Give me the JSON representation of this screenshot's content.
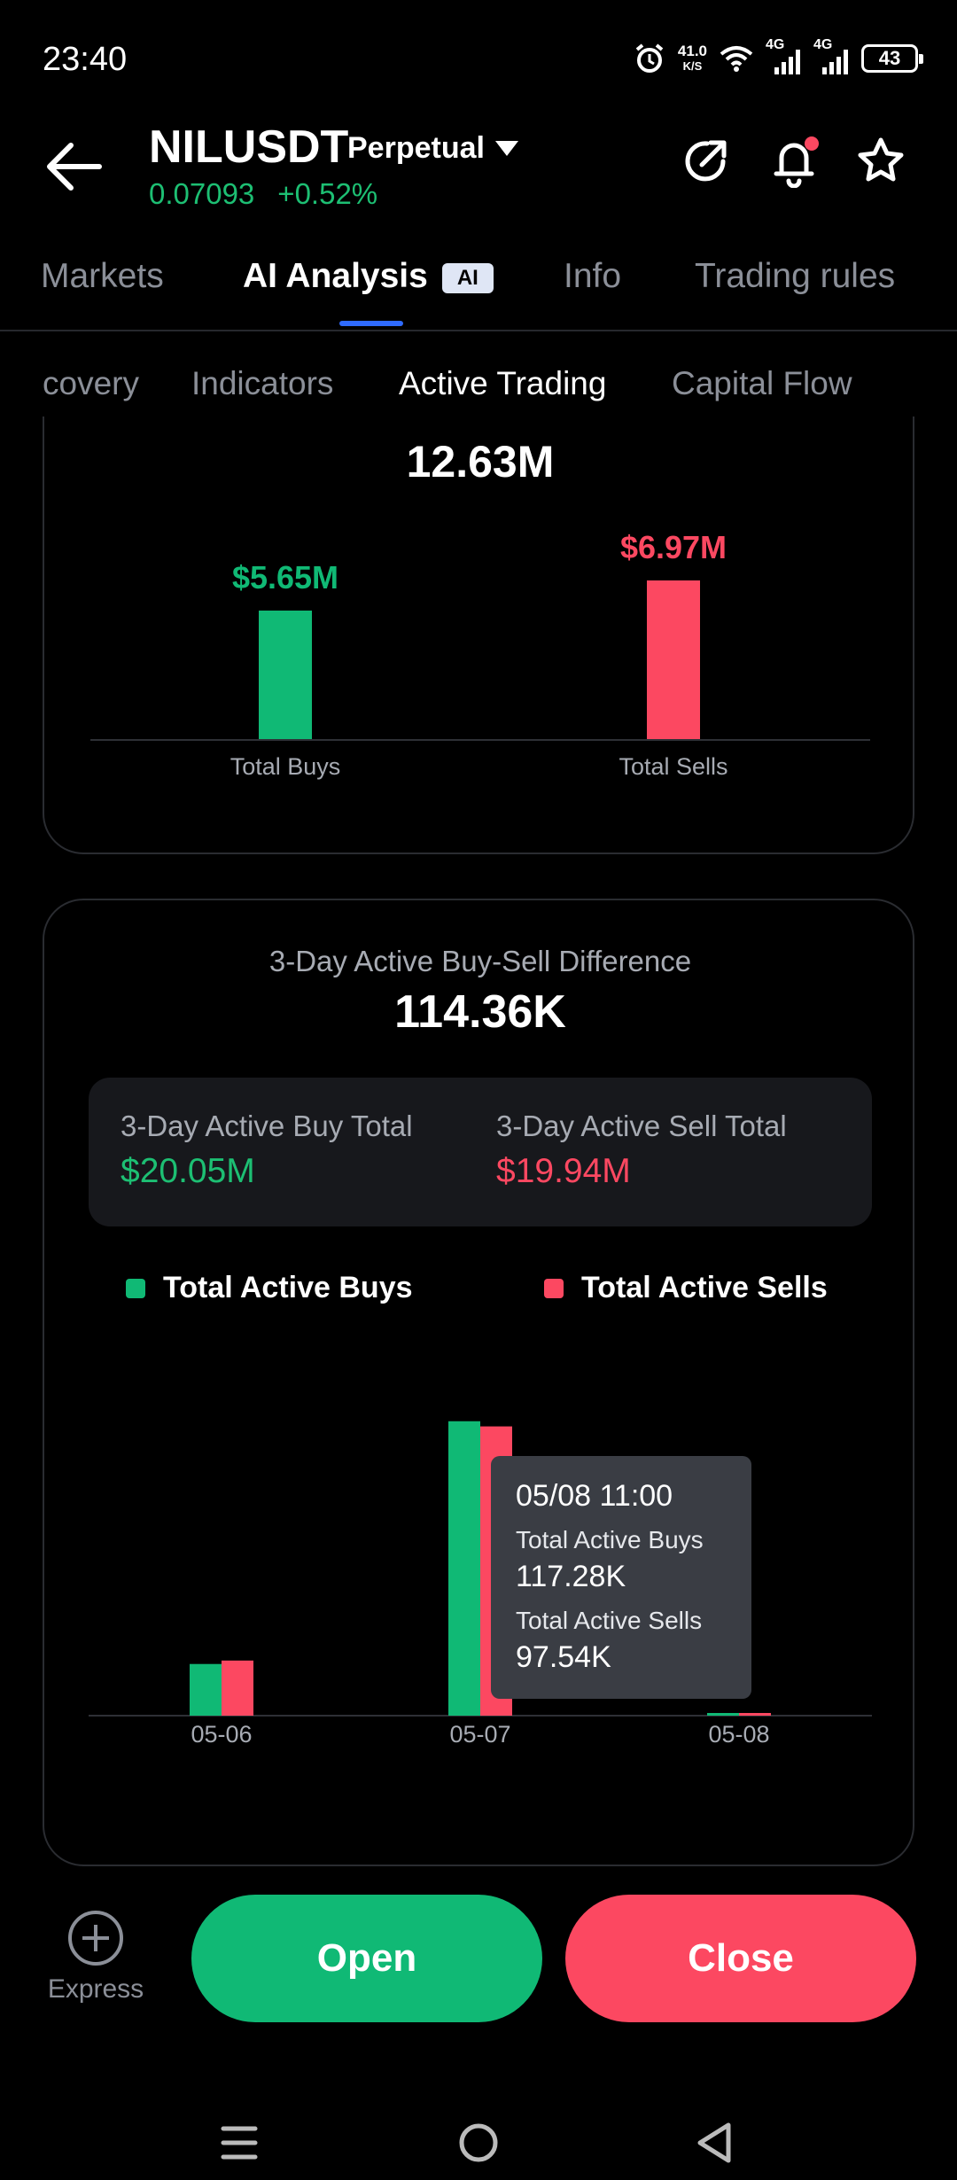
{
  "status_bar": {
    "time": "23:40",
    "speed_value": "41.0",
    "speed_unit": "K/S",
    "network1": "4G",
    "network2": "4G",
    "battery": "43"
  },
  "header": {
    "symbol": "NILUSDT",
    "contract_type": "Perpetual",
    "price": "0.07093",
    "change": "+0.52%"
  },
  "main_tabs": [
    {
      "label": "Markets"
    },
    {
      "label": "AI Analysis",
      "badge": "AI"
    },
    {
      "label": "Info"
    },
    {
      "label": "Trading rules"
    }
  ],
  "sub_tabs": [
    {
      "label": "covery"
    },
    {
      "label": "Indicators"
    },
    {
      "label": "Active Trading"
    },
    {
      "label": "Capital Flow"
    }
  ],
  "volume_card": {
    "total": "12.63M",
    "buys_value": "$5.65M",
    "sells_value": "$6.97M",
    "buys_label": "Total Buys",
    "sells_label": "Total Sells"
  },
  "diff_card": {
    "title": "3-Day Active Buy-Sell Difference",
    "value": "114.36K",
    "buy_total_label": "3-Day Active Buy Total",
    "buy_total_value": "$20.05M",
    "sell_total_label": "3-Day Active Sell Total",
    "sell_total_value": "$19.94M",
    "legend_buys": "Total Active Buys",
    "legend_sells": "Total Active Sells",
    "tooltip": {
      "time": "05/08 11:00",
      "buys_label": "Total Active Buys",
      "buys_value": "117.28K",
      "sells_label": "Total Active Sells",
      "sells_value": "97.54K"
    }
  },
  "chart_data": [
    {
      "type": "bar",
      "categories": [
        "Total Buys",
        "Total Sells"
      ],
      "values": [
        5.65,
        6.97
      ],
      "value_labels": [
        "$5.65M",
        "$6.97M"
      ],
      "title": "12.63M",
      "ylim": [
        0,
        7.0
      ]
    },
    {
      "type": "bar",
      "categories": [
        "05-06",
        "05-07",
        "05-08"
      ],
      "series": [
        {
          "name": "Total Active Buys",
          "values": [
            3.0,
            17.1,
            0.117
          ]
        },
        {
          "name": "Total Active Sells",
          "values": [
            3.2,
            16.8,
            0.098
          ]
        }
      ],
      "ylim": [
        0,
        17.5
      ]
    }
  ],
  "actions": {
    "express": "Express",
    "open": "Open",
    "close": "Close"
  },
  "colors": {
    "buy": "#10b975",
    "sell": "#fc4861",
    "accent": "#2f6bff"
  }
}
